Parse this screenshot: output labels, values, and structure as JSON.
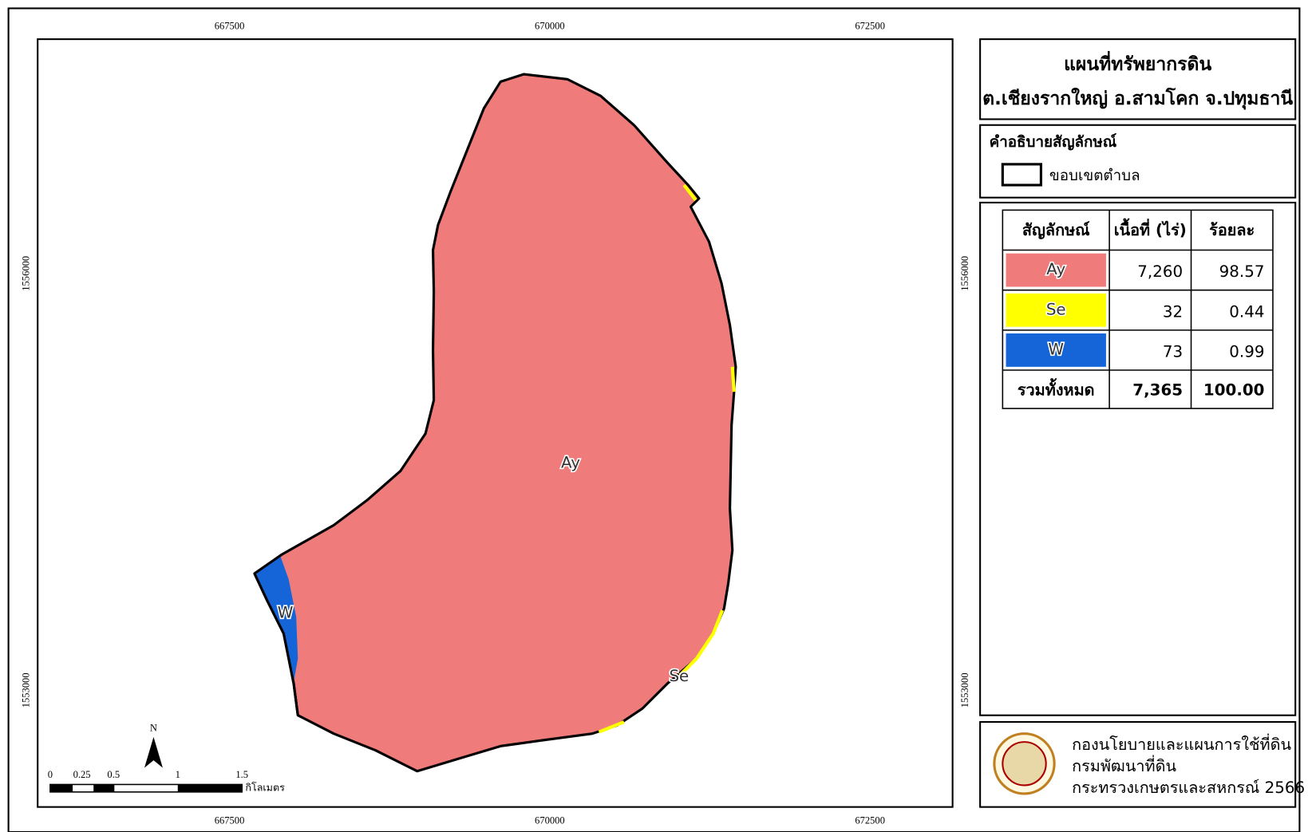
{
  "title": [
    "แผนที่ทรัพยากรดิน",
    "ต.เชียงรากใหญ่ อ.สามโคก จ.ปทุมธานี"
  ],
  "legend": {
    "heading": "คำอธิบายสัญลักษณ์",
    "boundary": "ขอบเขตตำบล"
  },
  "map": {
    "labels": [
      "Ay",
      "W",
      "Se"
    ],
    "x_coords_top": [
      "667500",
      "670000",
      "672500"
    ],
    "x_coords_bottom": [
      "667500",
      "670000",
      "672500"
    ],
    "y_coords_left": [
      "1556000",
      "1553000"
    ],
    "y_coords_right": [
      "1556000",
      "1553000"
    ]
  },
  "table": {
    "header": [
      "สัญลักษณ์",
      "เนื้อที่ (ไร่)",
      "ร้อยละ"
    ],
    "rows": [
      [
        "Ay",
        "7,260",
        "98.57"
      ],
      [
        "Se",
        "32",
        "0.44"
      ],
      [
        "W",
        "73",
        "0.99"
      ]
    ],
    "total": [
      "รวมทั้งหมด",
      "7,365",
      "100.00"
    ]
  },
  "scale_bar": {
    "north": "N",
    "ticks": [
      "0",
      "0.25",
      "0.5",
      "1",
      "1.5"
    ],
    "unit": "กิโลเมตร"
  },
  "credits": [
    "กองนโยบายและแผนการใช้ที่ดิน",
    "กรมพัฒนาที่ดิน",
    "กระทรวงเกษตรและสหกรณ์ 2566"
  ]
}
